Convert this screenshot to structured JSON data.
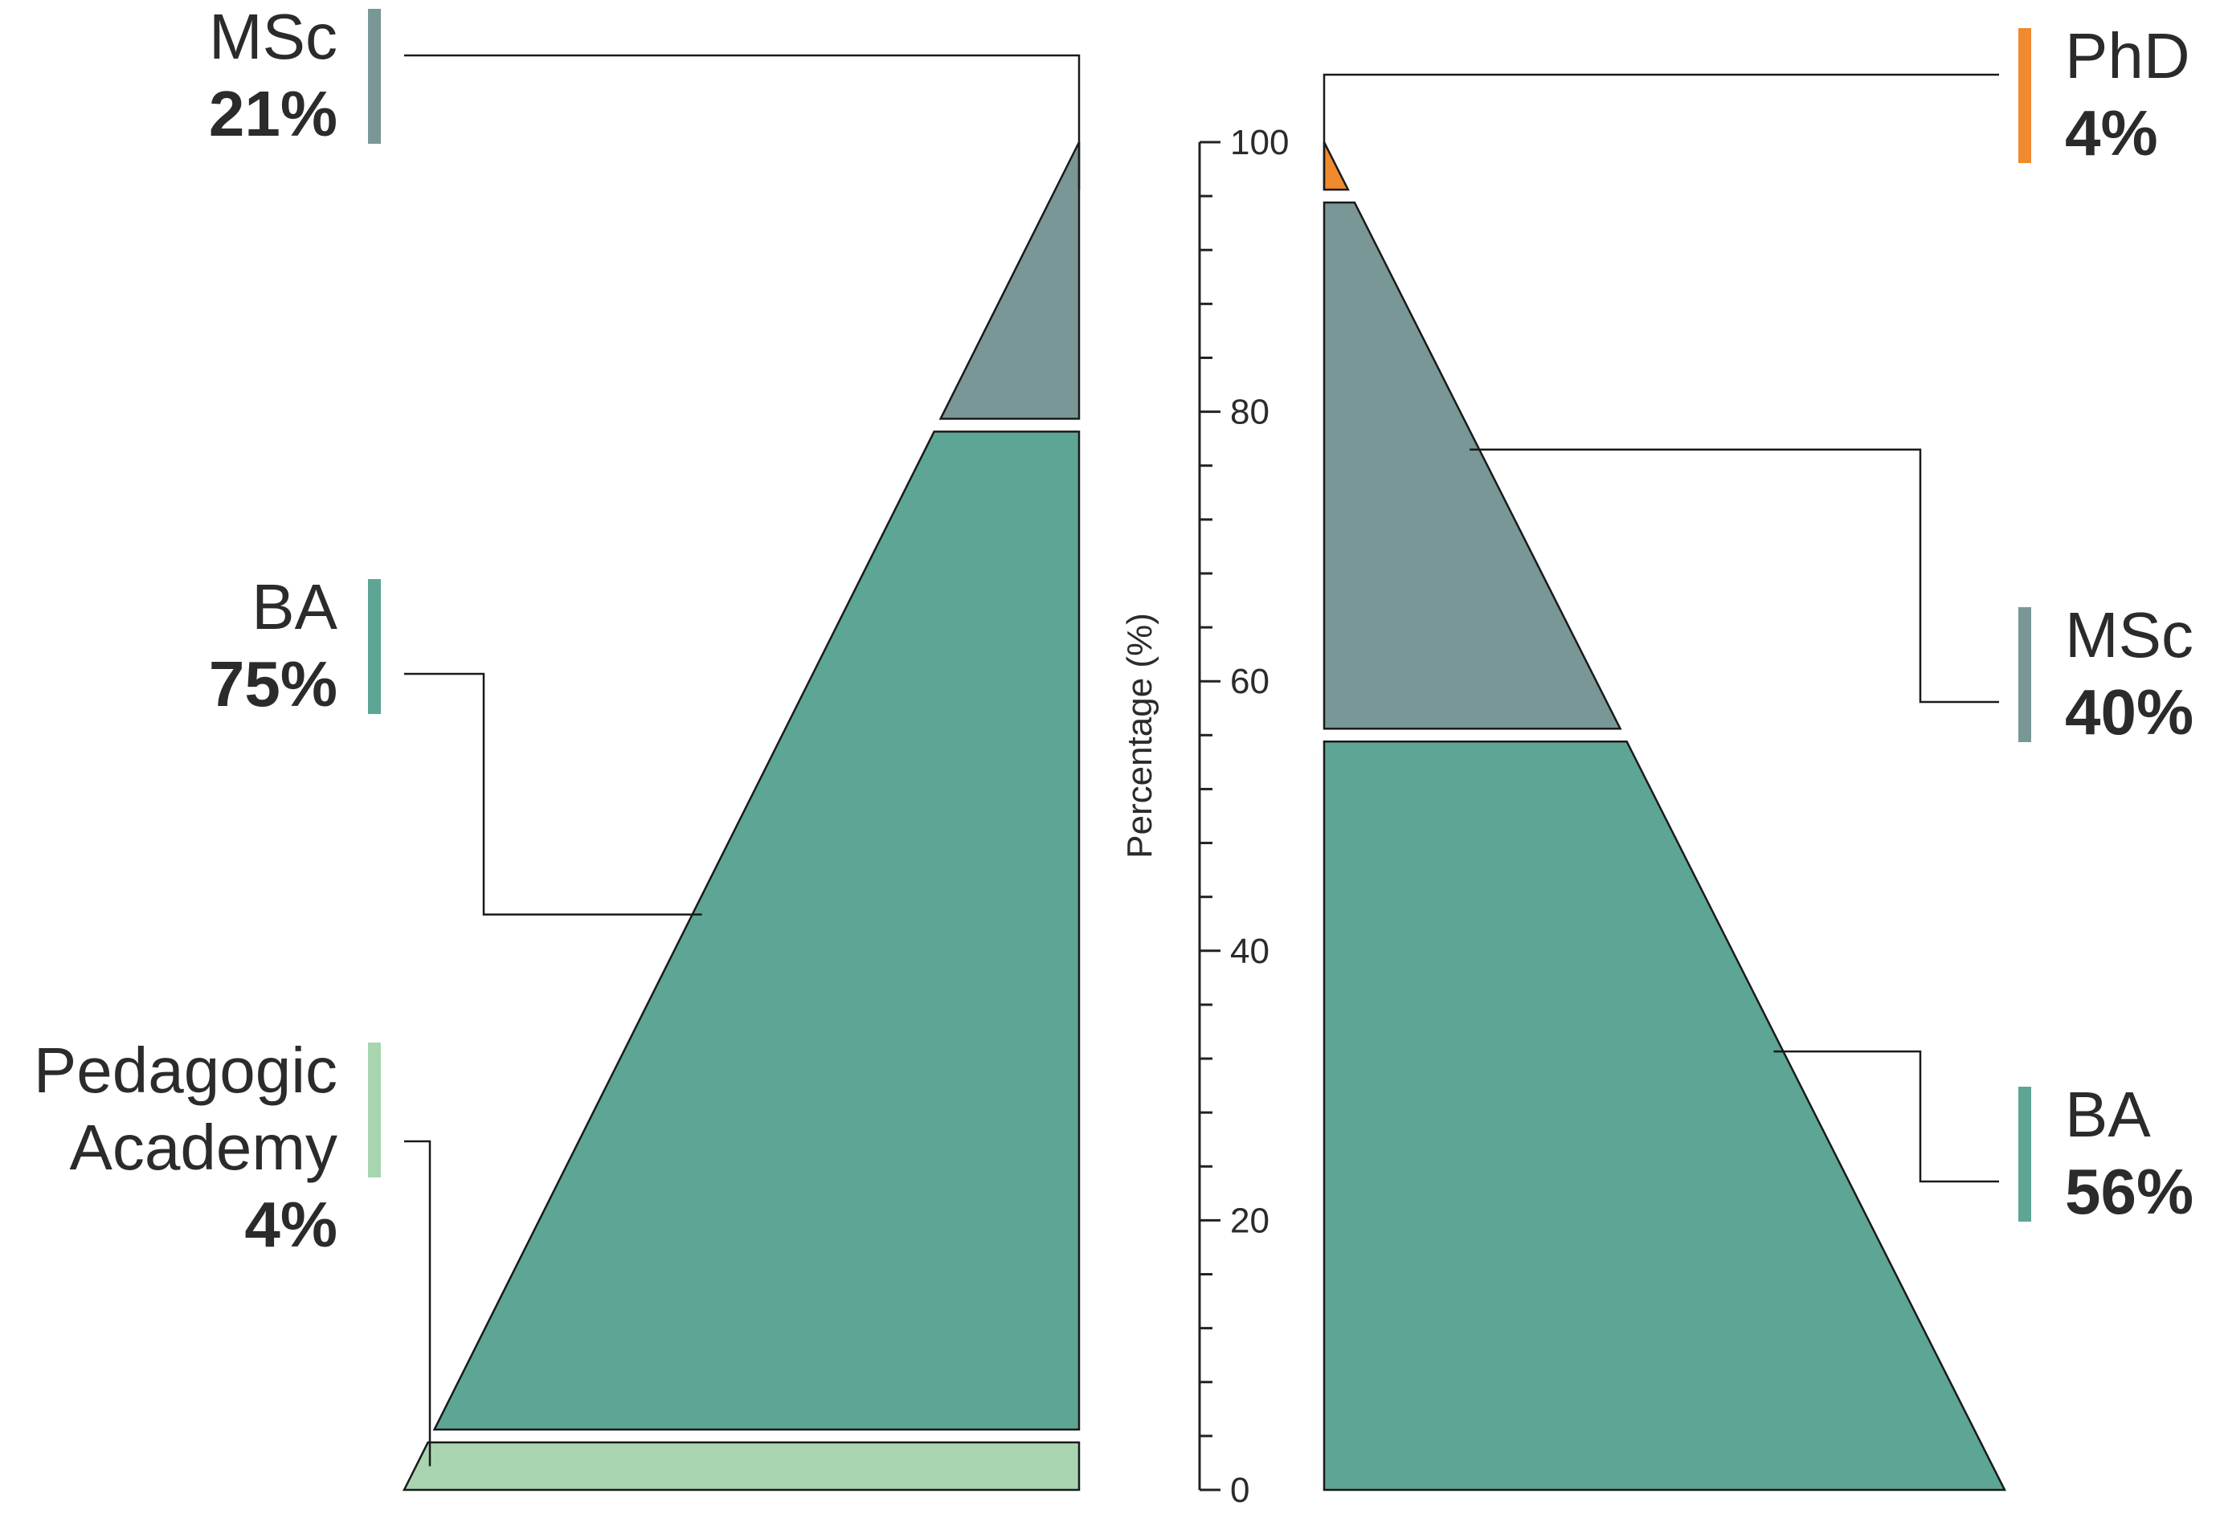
{
  "chart_data": {
    "type": "pyramid",
    "y_axis": {
      "label": "Percentage (%)",
      "range": [
        0,
        100
      ],
      "major_ticks": [
        0,
        20,
        40,
        60,
        80,
        100
      ],
      "minor_step": 4
    },
    "panels": [
      {
        "side": "left",
        "segments": [
          {
            "name": "Pedagogic Academy",
            "value": 4,
            "label_lines": [
              "Pedagogic",
              "Academy"
            ],
            "pct_label": "4%",
            "color": "#a8d5b0"
          },
          {
            "name": "BA",
            "value": 75,
            "label_lines": [
              "BA"
            ],
            "pct_label": "75%",
            "color": "#5da595"
          },
          {
            "name": "MSc",
            "value": 21,
            "label_lines": [
              "MSc"
            ],
            "pct_label": "21%",
            "color": "#789796"
          }
        ]
      },
      {
        "side": "right",
        "segments": [
          {
            "name": "BA",
            "value": 56,
            "label_lines": [
              "BA"
            ],
            "pct_label": "56%",
            "color": "#5da595"
          },
          {
            "name": "MSc",
            "value": 40,
            "label_lines": [
              "MSc"
            ],
            "pct_label": "40%",
            "color": "#789796"
          },
          {
            "name": "PhD",
            "value": 4,
            "label_lines": [
              "PhD"
            ],
            "pct_label": "4%",
            "color": "#f08a2e"
          }
        ]
      }
    ]
  }
}
